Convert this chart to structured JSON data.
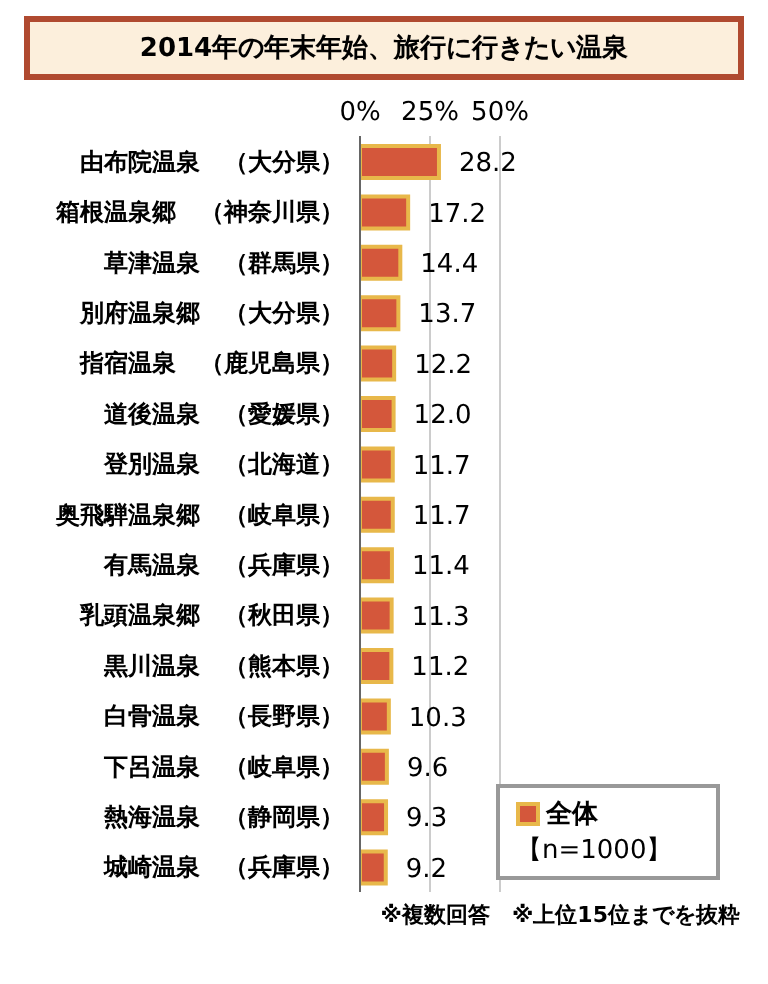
{
  "chart_data": {
    "type": "bar",
    "orientation": "horizontal",
    "title": "2014年の年末年始、旅行に行きたい温泉",
    "categories": [
      "由布院温泉　（大分県）",
      "箱根温泉郷　（神奈川県）",
      "草津温泉　（群馬県）",
      "別府温泉郷　（大分県）",
      "指宿温泉　（鹿児島県）",
      "道後温泉　（愛媛県）",
      "登別温泉　（北海道）",
      "奥飛騨温泉郷　（岐阜県）",
      "有馬温泉　（兵庫県）",
      "乳頭温泉郷　（秋田県）",
      "黒川温泉　（熊本県）",
      "白骨温泉　（長野県）",
      "下呂温泉　（岐阜県）",
      "熱海温泉　（静岡県）",
      "城崎温泉　（兵庫県）"
    ],
    "series": [
      {
        "name": "全体",
        "color": "#d4573b",
        "values": [
          28.2,
          17.2,
          14.4,
          13.7,
          12.2,
          12.0,
          11.7,
          11.7,
          11.4,
          11.3,
          11.2,
          10.3,
          9.6,
          9.3,
          9.2
        ],
        "value_labels": [
          "28.2",
          "17.2",
          "14.4",
          "13.7",
          "12.2",
          "12.0",
          "11.7",
          "11.7",
          "11.4",
          "11.3",
          "11.2",
          "10.3",
          "9.6",
          "9.3",
          "9.2"
        ]
      }
    ],
    "xlim": [
      0,
      50
    ],
    "xticks": [
      {
        "value": 0,
        "label": "0%"
      },
      {
        "value": 25,
        "label": "25%"
      },
      {
        "value": 50,
        "label": "50%"
      }
    ],
    "grid": "x",
    "legend": "bottom right",
    "annotations": [
      "【n=1000】",
      "※複数回答　※上位15位までを抜粋"
    ]
  }
}
